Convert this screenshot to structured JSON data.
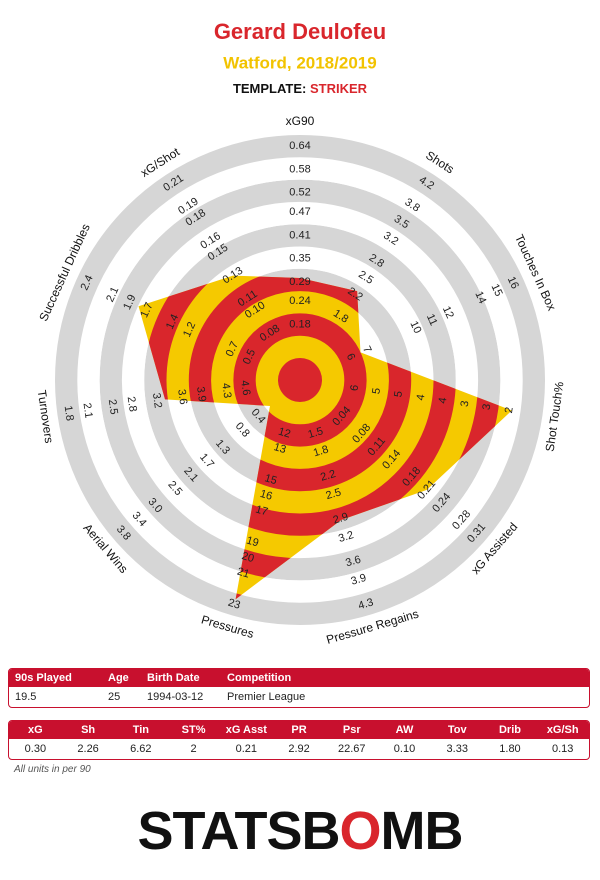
{
  "chart_data": {
    "type": "radar",
    "title": "Gerard Deulofeu",
    "subtitle": "Watford, 2018/2019",
    "template": {
      "label": "TEMPLATE:",
      "value": "STRIKER"
    },
    "band_colors": [
      "#d9262c",
      "#f5c900"
    ],
    "ring_colors": [
      "#d6d6d6",
      "#ffffff"
    ],
    "axes": [
      {
        "name": "xG90",
        "lim": [
          0.18,
          0.64
        ],
        "ticks": [
          0.18,
          0.24,
          0.29,
          0.35,
          0.41,
          0.47,
          0.52,
          0.58,
          0.64
        ],
        "value": 0.3
      },
      {
        "name": "Shots",
        "lim": [
          1.5,
          4.2
        ],
        "ticks": [
          1.8,
          2.2,
          2.5,
          2.8,
          3.2,
          3.5,
          3.8,
          4.2
        ],
        "value": 2.26
      },
      {
        "name": "Touches In Box",
        "lim": [
          6,
          16
        ],
        "ticks": [
          6,
          7,
          10,
          11,
          12,
          14,
          15,
          16
        ],
        "value": 6.62
      },
      {
        "name": "Shot Touch%",
        "lim": [
          6,
          1.5
        ],
        "ticks": [
          6,
          {
            "value": 5.44,
            "label": "5"
          },
          {
            "value": 4.88,
            "label": "5"
          },
          {
            "value": 4.31,
            "label": "4"
          },
          {
            "value": 3.75,
            "label": "4"
          },
          {
            "value": 3.19,
            "label": "3"
          },
          {
            "value": 2.63,
            "label": "3"
          },
          {
            "value": 2.06,
            "label": "2"
          }
        ],
        "value": 2
      },
      {
        "name": "xG Assisted",
        "lim": [
          0.04,
          0.31
        ],
        "ticks": [
          0.04,
          0.08,
          0.11,
          0.14,
          0.18,
          0.21,
          0.24,
          0.28,
          0.31
        ],
        "value": 0.21
      },
      {
        "name": "Pressure Regains",
        "lim": [
          1.5,
          4.3
        ],
        "ticks": [
          1.5,
          1.8,
          2.2,
          2.5,
          2.9,
          3.2,
          3.6,
          3.9,
          4.3
        ],
        "value": 2.92
      },
      {
        "name": "Pressures",
        "lim": [
          12,
          23
        ],
        "ticks": [
          12,
          13,
          15,
          16,
          17,
          19,
          20,
          21,
          23
        ],
        "value": 22.67
      },
      {
        "name": "Aerial Wins",
        "lim": [
          0.4,
          3.8
        ],
        "ticks": [
          0.4,
          0.8,
          1.3,
          1.7,
          2.1,
          2.5,
          {
            "value": 3,
            "label": "3.0"
          },
          3.4,
          3.8
        ],
        "value": 0.1
      },
      {
        "name": "Turnovers",
        "lim": [
          4.6,
          1.8
        ],
        "ticks": [
          4.6,
          4.3,
          3.9,
          3.6,
          3.2,
          2.8,
          2.5,
          2.1,
          1.8
        ],
        "value": 3.33
      },
      {
        "name": "Successful Dribbles",
        "lim": [
          0.5,
          2.4
        ],
        "ticks": [
          0.5,
          0.7,
          1.2,
          1.4,
          1.7,
          1.9,
          2.1,
          2.4
        ],
        "value": 1.8
      },
      {
        "name": "xG/Shot",
        "lim": [
          0.08,
          0.21
        ],
        "ticks": [
          0.08,
          {
            "value": 0.1,
            "label": "0.10"
          },
          0.11,
          0.13,
          0.15,
          0.16,
          0.18,
          0.19,
          0.21
        ],
        "value": 0.13
      }
    ]
  },
  "tables": [
    {
      "header": [
        "90s Played",
        "Age",
        "Birth Date",
        "Competition"
      ],
      "rows": [
        [
          "19.5",
          "25",
          "1994-03-12",
          "Premier League"
        ]
      ]
    },
    {
      "header": [
        "xG",
        "Sh",
        "Tin",
        "ST%",
        "xG Asst",
        "PR",
        "Psr",
        "AW",
        "Tov",
        "Drib",
        "xG/Sh"
      ],
      "rows": [
        [
          "0.30",
          "2.26",
          "6.62",
          "2",
          "0.21",
          "2.92",
          "22.67",
          "0.10",
          "3.33",
          "1.80",
          "0.13"
        ]
      ]
    }
  ],
  "footnote": "All units in per 90",
  "logo": {
    "before": "STATSB",
    "mark": "O",
    "after": "MB"
  }
}
